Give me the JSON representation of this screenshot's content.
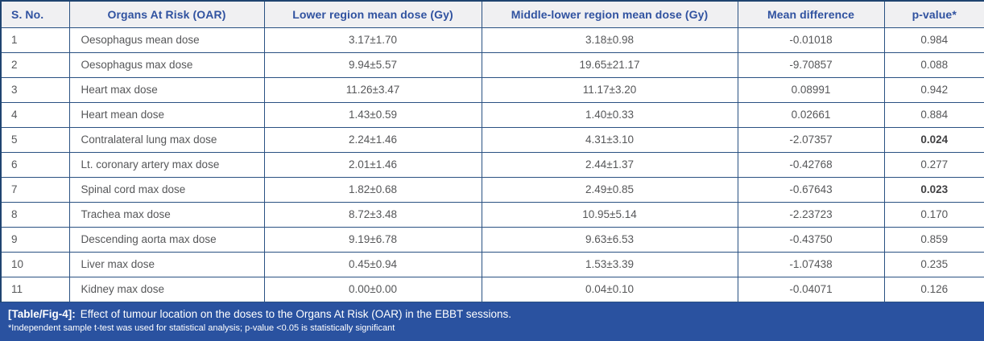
{
  "table": {
    "columns": [
      {
        "label": "S. No."
      },
      {
        "label": "Organs At Risk (OAR)"
      },
      {
        "label": "Lower region mean dose (Gy)"
      },
      {
        "label": "Middle-lower region mean dose (Gy)"
      },
      {
        "label": "Mean difference"
      },
      {
        "label": "p-value*"
      }
    ],
    "rows": [
      {
        "sno": "1",
        "organ": "Oesophagus mean dose",
        "lower": "3.17±1.70",
        "middle_lower": "3.18±0.98",
        "mean_diff": "-0.01018",
        "p_value": "0.984",
        "significant": false
      },
      {
        "sno": "2",
        "organ": "Oesophagus max dose",
        "lower": "9.94±5.57",
        "middle_lower": "19.65±21.17",
        "mean_diff": "-9.70857",
        "p_value": "0.088",
        "significant": false
      },
      {
        "sno": "3",
        "organ": "Heart max dose",
        "lower": "11.26±3.47",
        "middle_lower": "11.17±3.20",
        "mean_diff": "0.08991",
        "p_value": "0.942",
        "significant": false
      },
      {
        "sno": "4",
        "organ": "Heart mean dose",
        "lower": "1.43±0.59",
        "middle_lower": "1.40±0.33",
        "mean_diff": "0.02661",
        "p_value": "0.884",
        "significant": false
      },
      {
        "sno": "5",
        "organ": "Contralateral lung max dose",
        "lower": "2.24±1.46",
        "middle_lower": "4.31±3.10",
        "mean_diff": "-2.07357",
        "p_value": "0.024",
        "significant": true
      },
      {
        "sno": "6",
        "organ": "Lt. coronary artery max dose",
        "lower": "2.01±1.46",
        "middle_lower": "2.44±1.37",
        "mean_diff": "-0.42768",
        "p_value": "0.277",
        "significant": false
      },
      {
        "sno": "7",
        "organ": "Spinal cord max dose",
        "lower": "1.82±0.68",
        "middle_lower": "2.49±0.85",
        "mean_diff": "-0.67643",
        "p_value": "0.023",
        "significant": true
      },
      {
        "sno": "8",
        "organ": "Trachea max dose",
        "lower": "8.72±3.48",
        "middle_lower": "10.95±5.14",
        "mean_diff": "-2.23723",
        "p_value": "0.170",
        "significant": false
      },
      {
        "sno": "9",
        "organ": "Descending aorta max dose",
        "lower": "9.19±6.78",
        "middle_lower": "9.63±6.53",
        "mean_diff": "-0.43750",
        "p_value": "0.859",
        "significant": false
      },
      {
        "sno": "10",
        "organ": "Liver max dose",
        "lower": "0.45±0.94",
        "middle_lower": "1.53±3.39",
        "mean_diff": "-1.07438",
        "p_value": "0.235",
        "significant": false
      },
      {
        "sno": "11",
        "organ": "Kidney max dose",
        "lower": "0.00±0.00",
        "middle_lower": "0.04±0.10",
        "mean_diff": "-0.04071",
        "p_value": "0.126",
        "significant": false
      }
    ]
  },
  "caption": {
    "label": "[Table/Fig-4]:",
    "text": "Effect of tumour location on the doses to the Organs At Risk (OAR) in the EBBT sessions.",
    "footnote": "*Independent sample t-test was used for statistical analysis; p-value <0.05 is statistically significant"
  },
  "colors": {
    "header_text": "#3052a0",
    "cell_border": "#2a5182",
    "caption_bg": "#2a52a0",
    "body_text": "#565759",
    "header_bg": "#f0f0f2"
  }
}
